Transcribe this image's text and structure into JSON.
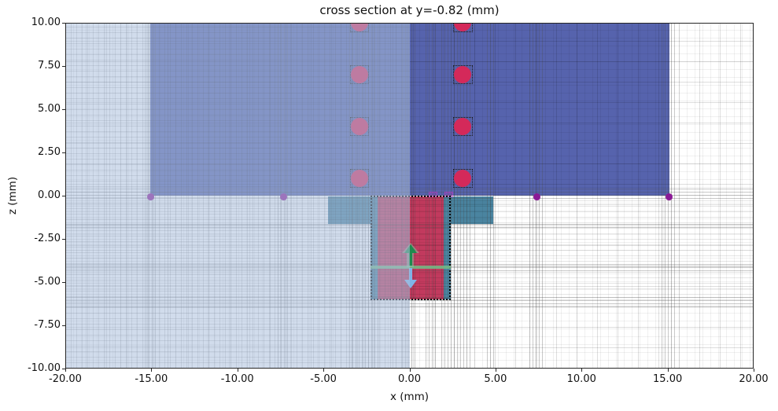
{
  "figure": {
    "title": "cross section at y=-0.82 (mm)",
    "xlabel": "x (mm)",
    "ylabel": "z (mm)"
  },
  "chart_data": {
    "type": "area",
    "plot_kind": "2D FDTD simulation cross-section with nonuniform mesh grid",
    "title": "cross section at y=-0.82 (mm)",
    "xlabel": "x (mm)",
    "ylabel": "z (mm)",
    "xlim": [
      -20,
      20
    ],
    "zlim": [
      -10,
      10
    ],
    "grid": "nonuniform mesh lines, dense near structure boundaries",
    "legend": "none",
    "xticks": {
      "values": [
        -20,
        -15,
        -10,
        -5,
        0,
        5,
        10,
        15,
        20
      ],
      "labels": [
        "-20.00",
        "-15.00",
        "-10.00",
        "-5.00",
        "0.00",
        "5.00",
        "10.00",
        "15.00",
        "20.00"
      ]
    },
    "zticks": {
      "values": [
        10,
        7.5,
        5,
        2.5,
        0,
        -2.5,
        -5,
        -7.5,
        -10
      ],
      "labels": [
        "10.00",
        "7.50",
        "5.00",
        "2.50",
        "0.00",
        "-2.50",
        "-5.00",
        "-7.50",
        "-10.00"
      ]
    },
    "regions": [
      {
        "name": "upper-dielectric-block",
        "x0": -15.05,
        "x1": 15.1,
        "z0": 0.0,
        "z1": 10.0,
        "fill": "#5663ad",
        "mesh": "blue"
      },
      {
        "name": "teal-slab",
        "x0": -4.75,
        "x1": 4.85,
        "z0": -1.65,
        "z1": -0.05,
        "fill": "#4a84a0",
        "mesh": "teal"
      },
      {
        "name": "teal-via-column",
        "x0": -2.27,
        "x1": 2.42,
        "z0": -6.02,
        "z1": -0.05,
        "fill": "#4a84a0",
        "mesh": "teal"
      },
      {
        "name": "red-conductor-column",
        "x0": -1.87,
        "x1": 1.97,
        "z0": -6.02,
        "z1": -0.05,
        "fill": "#c23a5e",
        "mesh": "red"
      }
    ],
    "symmetry_overlay": {
      "x0": -20,
      "x1": 0,
      "z0": -10,
      "z1": 10,
      "fill": "rgba(172,191,221,0.55)"
    },
    "mesh_override_box": {
      "x0": -2.27,
      "x1": 2.42,
      "z0": -6.05,
      "z1": 0.0,
      "border_color": "#000000",
      "border_style": "dotted"
    },
    "via_circles": {
      "color": "#d4295a",
      "radius": 0.5,
      "box_half": 0.56,
      "box_color": "#1a1a1a",
      "centers": [
        [
          -2.9,
          1
        ],
        [
          -2.9,
          4
        ],
        [
          -2.9,
          7
        ],
        [
          -2.9,
          10
        ],
        [
          3.1,
          1
        ],
        [
          3.1,
          4
        ],
        [
          3.1,
          7
        ],
        [
          3.1,
          10
        ]
      ]
    },
    "vertex_points": {
      "color": "#8b1a96",
      "radius": 0.2,
      "centers": [
        [
          -15.05,
          -0.08
        ],
        [
          -7.3,
          -0.08
        ],
        [
          7.4,
          -0.08
        ],
        [
          15.1,
          -0.08
        ]
      ]
    },
    "tiny_monitors": {
      "color": "#c333c3",
      "fill": "rgba(195,51,195,0.25)",
      "items": [
        {
          "x": 1.35,
          "z": 0.06,
          "w": 0.5,
          "h": 0.3
        },
        {
          "x": 2.3,
          "z": 0.06,
          "w": 0.5,
          "h": 0.3
        }
      ]
    },
    "monitor_line": {
      "x0": -2.27,
      "x1": 2.42,
      "z": -4.12,
      "thickness_px": 4,
      "color": "rgba(115,190,135,0.85)"
    },
    "arrows": [
      {
        "name": "source-arrow-up",
        "x": 0.06,
        "z_tip": -2.83,
        "z_tail": -4.05,
        "dir": "up",
        "color": "#1e8a4e",
        "halo": "rgba(134,205,164,0.5)"
      },
      {
        "name": "source-arrow-down",
        "x": 0.06,
        "z_tip": -5.38,
        "z_tail": -4.18,
        "dir": "down",
        "color": "#7fb3e6",
        "halo": null
      }
    ],
    "mesh_bands": {
      "vertical": [
        [
          -15.35,
          -14.72
        ],
        [
          -7.68,
          -7.05
        ],
        [
          -3.5,
          -2.45
        ],
        [
          -2.4,
          -1.75
        ],
        [
          -0.45,
          0.4
        ],
        [
          0.95,
          1.6
        ],
        [
          1.85,
          2.55
        ],
        [
          2.6,
          3.6
        ],
        [
          4.5,
          5.05
        ],
        [
          6.95,
          7.8
        ],
        [
          14.65,
          15.55
        ]
      ],
      "horizontal": [
        [
          0.4,
          -0.18
        ],
        [
          -1.5,
          -1.85
        ],
        [
          -3.9,
          -4.35
        ],
        [
          -5.8,
          -6.45
        ]
      ]
    },
    "colors": {
      "structure_blue": "#5663ad",
      "structure_teal": "#4a84a0",
      "conductor_red": "#c23a5e",
      "via_circle_red": "#d4295a",
      "vertex_purple": "#8b1a96",
      "monitor_violet": "#c333c3",
      "arrow_green": "#1e8a4e",
      "arrow_blue": "#7fb3e6",
      "port_line_green": "#73be87",
      "symmetry_overlay_blue": "rgba(172,191,221,0.55)"
    }
  }
}
